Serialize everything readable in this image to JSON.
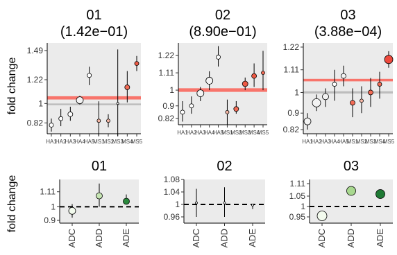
{
  "y_axis_label": "fold change",
  "chart_data": [
    {
      "type": "scatter",
      "row": "top",
      "title_line1": "01",
      "title_line2": "(1.42e−01)",
      "ytick_labels": [
        "0.82",
        "1",
        "1.22",
        "1.49"
      ],
      "ytick_values": [
        0.82,
        1,
        1.22,
        1.49
      ],
      "ylim": [
        0.72,
        1.56
      ],
      "x_tick_labels": [
        "HA1",
        "HA2",
        "HA3",
        "HA4",
        "HA5",
        "MS1",
        "MS2",
        "MS3",
        "MS4",
        "MS5"
      ],
      "reference_band": [
        0.985,
        1.0
      ],
      "highlight_band": [
        1.037,
        1.067
      ],
      "points": [
        {
          "x": "HA1",
          "y": 0.8,
          "lo": 0.74,
          "hi": 0.86,
          "size": 3,
          "fill": "#ffffff"
        },
        {
          "x": "HA2",
          "y": 0.86,
          "lo": 0.79,
          "hi": 0.95,
          "size": 3,
          "fill": "#ffffff"
        },
        {
          "x": "HA3",
          "y": 0.9,
          "lo": 0.84,
          "hi": 0.97,
          "size": 3.5,
          "fill": "#ffffff"
        },
        {
          "x": "HA4",
          "y": 1.03,
          "lo": 0.99,
          "hi": 1.07,
          "size": 5,
          "fill": "#f3f3f3"
        },
        {
          "x": "HA5",
          "y": 1.26,
          "lo": 1.17,
          "hi": 1.34,
          "size": 3,
          "fill": "#ffffff"
        },
        {
          "x": "MS1",
          "y": 0.84,
          "lo": 0.7,
          "hi": 1.02,
          "size": 2.5,
          "fill": "#f7b8a6"
        },
        {
          "x": "MS2",
          "y": 0.84,
          "lo": 0.78,
          "hi": 0.9,
          "size": 2.5,
          "fill": "#f7b8a6"
        },
        {
          "x": "MS3",
          "y": 1.0,
          "lo": 0.7,
          "hi": 1.5,
          "size": 1.5,
          "fill": "#ffffff"
        },
        {
          "x": "MS4",
          "y": 1.15,
          "lo": 1.01,
          "hi": 1.3,
          "size": 3.5,
          "fill": "#f26b55"
        },
        {
          "x": "MS5",
          "y": 1.37,
          "lo": 1.3,
          "hi": 1.44,
          "size": 3,
          "fill": "#ee5a45"
        }
      ]
    },
    {
      "type": "scatter",
      "row": "top",
      "title_line1": "02",
      "title_line2": "(8.90e−01)",
      "ytick_labels": [
        "0.82",
        "0.9",
        "1",
        "1.11",
        "1.22"
      ],
      "ytick_values": [
        0.82,
        0.9,
        1,
        1.11,
        1.22
      ],
      "ylim": [
        0.78,
        1.3
      ],
      "x_tick_labels": [
        "HA1",
        "HA2",
        "HA3",
        "HA4",
        "HA5",
        "MS1",
        "MS2",
        "MS3",
        "MS4",
        "MS5"
      ],
      "highlight_band": [
        0.989,
        1.012
      ],
      "points": [
        {
          "x": "HA1",
          "y": 0.86,
          "lo": 0.8,
          "hi": 0.93,
          "size": 3,
          "fill": "#ffffff"
        },
        {
          "x": "HA2",
          "y": 0.9,
          "lo": 0.85,
          "hi": 0.96,
          "size": 3,
          "fill": "#ffffff"
        },
        {
          "x": "HA3",
          "y": 0.98,
          "lo": 0.93,
          "hi": 1.02,
          "size": 5,
          "fill": "#f3f3f3"
        },
        {
          "x": "HA4",
          "y": 1.06,
          "lo": 1.0,
          "hi": 1.12,
          "size": 5,
          "fill": "#f3f3f3"
        },
        {
          "x": "HA5",
          "y": 1.21,
          "lo": 1.15,
          "hi": 1.28,
          "size": 3,
          "fill": "#ffffff"
        },
        {
          "x": "MS1",
          "y": 0.86,
          "lo": 0.78,
          "hi": 0.94,
          "size": 2.5,
          "fill": "#f7b8a6"
        },
        {
          "x": "MS2",
          "y": 0.88,
          "lo": 0.85,
          "hi": 0.93,
          "size": 3.5,
          "fill": "#f26b55"
        },
        {
          "x": "MS3",
          "y": 1.04,
          "lo": 1.0,
          "hi": 1.08,
          "size": 4,
          "fill": "#ee5a45"
        },
        {
          "x": "MS4",
          "y": 1.09,
          "lo": 1.02,
          "hi": 1.17,
          "size": 3.5,
          "fill": "#ee5a45"
        },
        {
          "x": "MS5",
          "y": 1.11,
          "lo": 1.0,
          "hi": 1.25,
          "size": 2.5,
          "fill": "#f26b55"
        }
      ]
    },
    {
      "type": "scatter",
      "row": "top",
      "title_line1": "03",
      "title_line2": "(3.88e−04)",
      "ytick_labels": [
        "0.82",
        "0.9",
        "1",
        "1.11",
        "1.22"
      ],
      "ytick_values": [
        0.82,
        0.9,
        1,
        1.11,
        1.22
      ],
      "ylim": [
        0.8,
        1.24
      ],
      "x_tick_labels": [
        "HA1",
        "HA2",
        "HA3",
        "HA4",
        "HA5",
        "MS1",
        "MS2",
        "MS3",
        "MS4",
        "MS5"
      ],
      "reference_band": [
        0.995,
        1.006
      ],
      "highlight_band": [
        1.054,
        1.066
      ],
      "points": [
        {
          "x": "HA1",
          "y": 0.86,
          "lo": 0.82,
          "hi": 0.9,
          "size": 5,
          "fill": "#f3f3f3"
        },
        {
          "x": "HA2",
          "y": 0.95,
          "lo": 0.91,
          "hi": 0.99,
          "size": 6,
          "fill": "#f3f3f3"
        },
        {
          "x": "HA3",
          "y": 0.98,
          "lo": 0.93,
          "hi": 1.02,
          "size": 4.5,
          "fill": "#f3f3f3"
        },
        {
          "x": "HA4",
          "y": 1.04,
          "lo": 0.96,
          "hi": 1.11,
          "size": 3,
          "fill": "#ffffff"
        },
        {
          "x": "HA5",
          "y": 1.08,
          "lo": 1.03,
          "hi": 1.13,
          "size": 3.5,
          "fill": "#f3f3f3"
        },
        {
          "x": "MS1",
          "y": 0.95,
          "lo": 0.88,
          "hi": 1.02,
          "size": 3.5,
          "fill": "#f26b55"
        },
        {
          "x": "MS2",
          "y": 0.96,
          "lo": 0.9,
          "hi": 1.03,
          "size": 2.5,
          "fill": "#f7b8a6"
        },
        {
          "x": "MS3",
          "y": 1.0,
          "lo": 0.93,
          "hi": 1.07,
          "size": 3.5,
          "fill": "#f26b55"
        },
        {
          "x": "MS4",
          "y": 1.04,
          "lo": 0.97,
          "hi": 1.1,
          "size": 3,
          "fill": "#f26b55"
        },
        {
          "x": "MS5",
          "y": 1.16,
          "lo": 1.12,
          "hi": 1.2,
          "size": 6,
          "fill": "#ee4a3e"
        }
      ]
    },
    {
      "type": "scatter",
      "row": "bottom",
      "title_line1": "01",
      "ytick_labels": [
        "0.9",
        "1",
        "1.11"
      ],
      "ytick_values": [
        0.9,
        1,
        1.11
      ],
      "ylim": [
        0.88,
        1.2
      ],
      "categories": [
        "ADC",
        "ADD",
        "ADE"
      ],
      "reference_line": 1,
      "points": [
        {
          "x": "ADC",
          "y": 0.97,
          "lo": 0.92,
          "hi": 1.02,
          "size": 5,
          "fill": "#f3fbee"
        },
        {
          "x": "ADD",
          "y": 1.08,
          "lo": 1.0,
          "hi": 1.17,
          "size": 4.5,
          "fill": "#c6e5b3"
        },
        {
          "x": "ADE",
          "y": 1.04,
          "lo": 1.02,
          "hi": 1.09,
          "size": 4.5,
          "fill": "#2b8a3e"
        }
      ]
    },
    {
      "type": "scatter",
      "row": "bottom",
      "title_line1": "02",
      "ytick_labels": [
        "0.96",
        "1",
        "1.04",
        "1.08"
      ],
      "ytick_values": [
        0.96,
        1,
        1.04,
        1.08
      ],
      "ylim": [
        0.94,
        1.08
      ],
      "categories": [
        "ADC",
        "ADD",
        "ADE"
      ],
      "reference_line": 1,
      "points": [
        {
          "x": "ADC",
          "y": 1.005,
          "lo": 0.96,
          "hi": 1.05,
          "size": 1.5,
          "fill": "#ffffff"
        },
        {
          "x": "ADD",
          "y": 1.005,
          "lo": 0.96,
          "hi": 1.055,
          "size": 1.5,
          "fill": "#ffffff"
        },
        {
          "x": "ADE",
          "y": 0.998,
          "lo": 0.985,
          "hi": 1.0,
          "size": 1.5,
          "fill": "#ffffff"
        }
      ]
    },
    {
      "type": "scatter",
      "row": "bottom",
      "title_line1": "03",
      "ytick_labels": [
        "0.95",
        "1",
        "1.05",
        "1.11"
      ],
      "ytick_values": [
        0.95,
        1,
        1.05,
        1.11
      ],
      "ylim": [
        0.92,
        1.13
      ],
      "categories": [
        "ADC",
        "ADD",
        "ADE"
      ],
      "reference_line": 1,
      "points": [
        {
          "x": "ADC",
          "y": 0.955,
          "lo": 0.935,
          "hi": 0.975,
          "size": 7,
          "fill": "#f3fbee"
        },
        {
          "x": "ADD",
          "y": 1.075,
          "lo": 1.06,
          "hi": 1.09,
          "size": 6.5,
          "fill": "#a8d88f"
        },
        {
          "x": "ADE",
          "y": 1.06,
          "lo": 1.05,
          "hi": 1.07,
          "size": 6.5,
          "fill": "#1f7a34"
        }
      ]
    }
  ]
}
